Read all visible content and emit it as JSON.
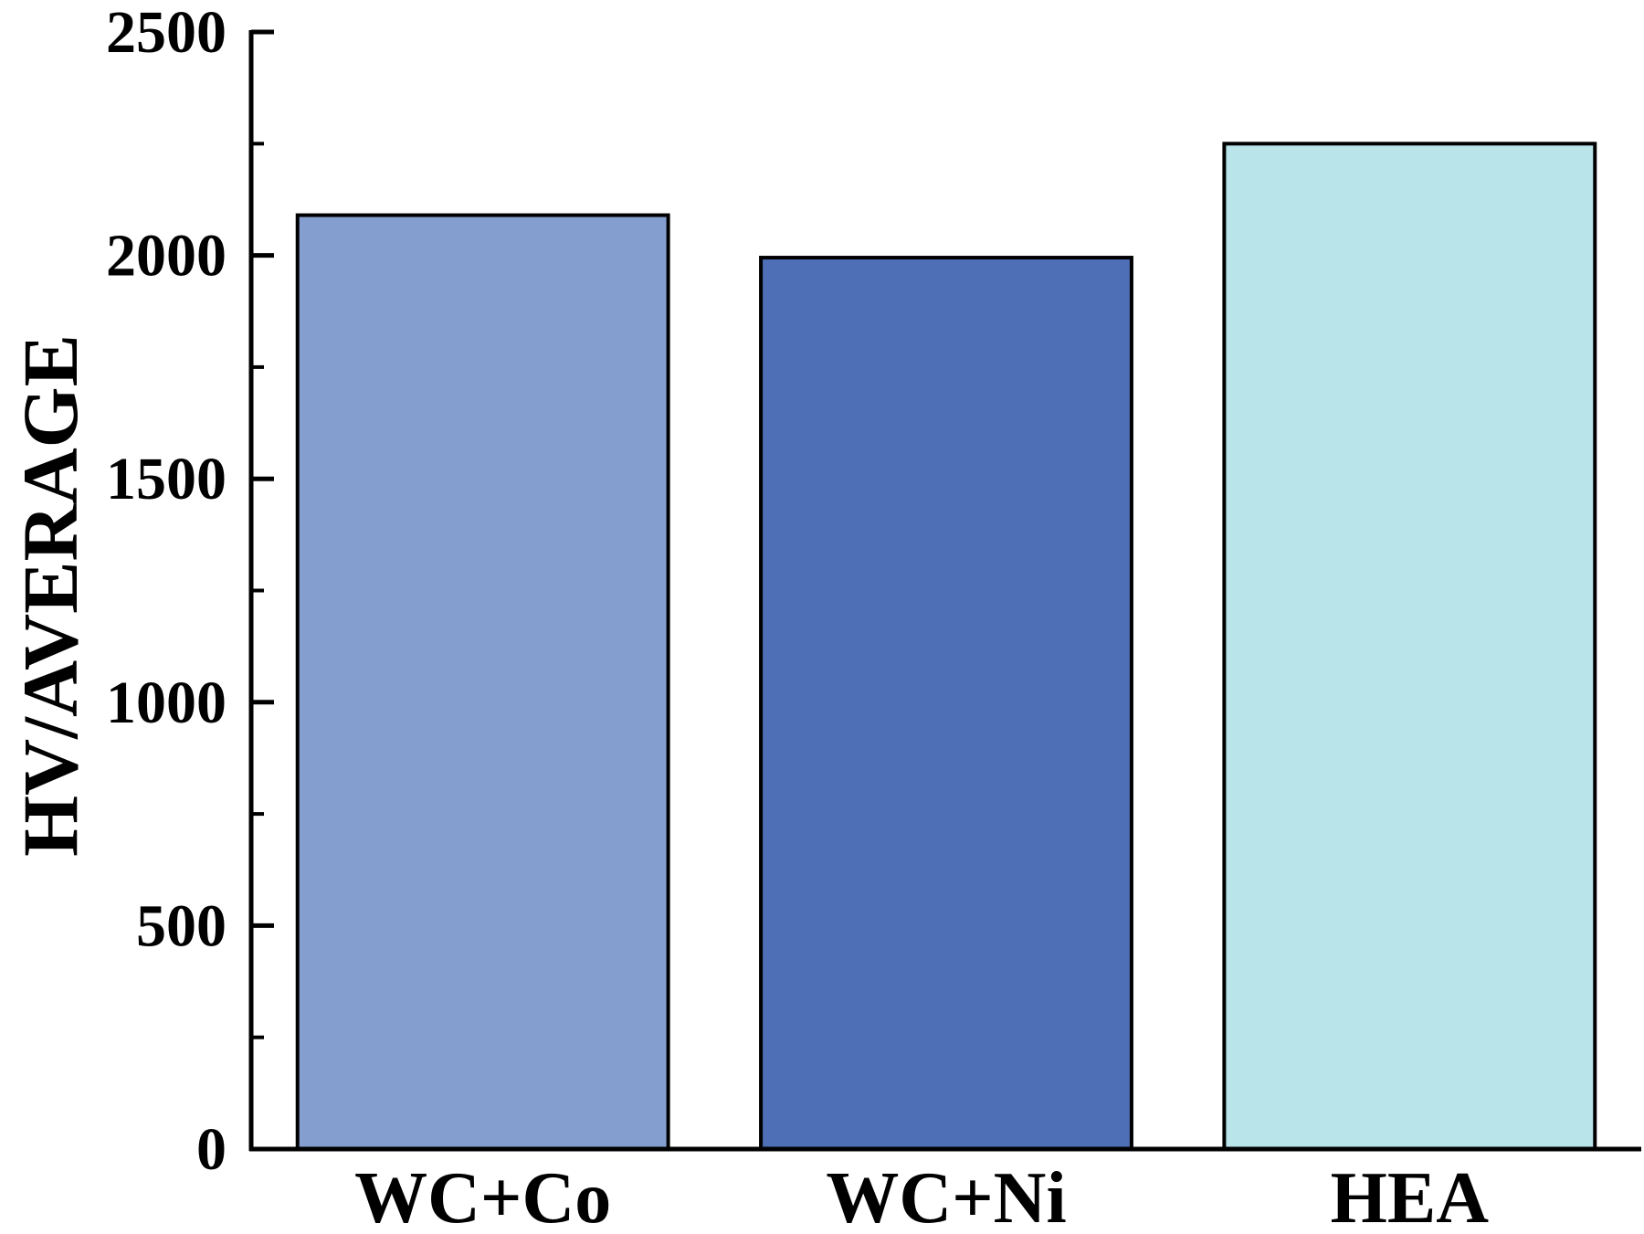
{
  "chart_data": {
    "type": "bar",
    "title": "",
    "xlabel": "",
    "ylabel": "HV/AVERAGE",
    "categories": [
      "WC+Co",
      "WC+Ni",
      "HEA"
    ],
    "values": [
      2090,
      1995,
      2250
    ],
    "colors": [
      "#849fcf",
      "#4e6fb5",
      "#b9e4ea"
    ],
    "ylim": [
      0,
      2500
    ],
    "major_ticks": [
      0,
      500,
      1000,
      1500,
      2000,
      2500
    ],
    "minor_ticks": [
      250,
      750,
      1250,
      1750,
      2250
    ],
    "grid": false,
    "legend": "none"
  }
}
